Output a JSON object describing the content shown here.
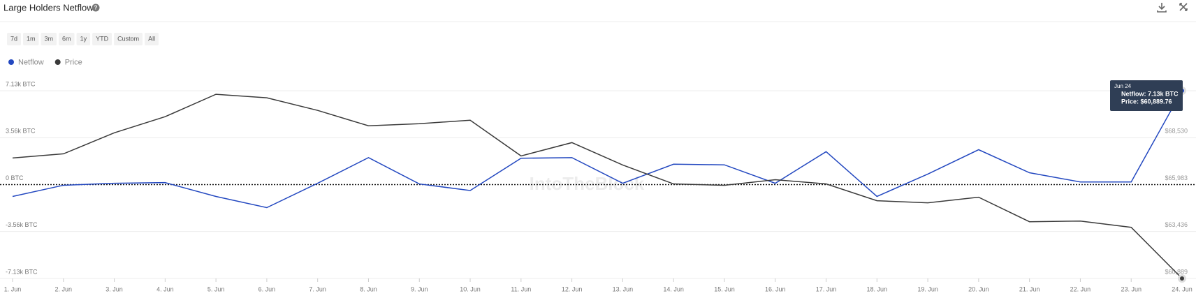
{
  "title": "Large Holders Netflow",
  "ranges": [
    "7d",
    "1m",
    "3m",
    "6m",
    "1y",
    "YTD",
    "Custom",
    "All"
  ],
  "watermark": "IntoTheBlock",
  "tooltip": {
    "title": "Jun 24",
    "lines": [
      "Netflow: 7.13k BTC",
      "Price: $60,889.76"
    ]
  },
  "chart_data": {
    "type": "line",
    "categories": [
      "1. Jun",
      "2. Jun",
      "3. Jun",
      "4. Jun",
      "5. Jun",
      "6. Jun",
      "7. Jun",
      "8. Jun",
      "9. Jun",
      "10. Jun",
      "11. Jun",
      "12. Jun",
      "13. Jun",
      "14. Jun",
      "15. Jun",
      "16. Jun",
      "17. Jun",
      "18. Jun",
      "19. Jun",
      "20. Jun",
      "21. Jun",
      "22. Jun",
      "23. Jun",
      "24. Jun"
    ],
    "series": [
      {
        "name": "Netflow",
        "color": "#2348c0",
        "values": [
          -900,
          -50,
          100,
          150,
          -900,
          -1750,
          100,
          2050,
          50,
          -450,
          2000,
          2050,
          100,
          1550,
          1500,
          100,
          2500,
          -900,
          800,
          2650,
          900,
          200,
          200,
          7130
        ]
      },
      {
        "name": "Price",
        "color": "#3a3a3a",
        "axis": "y2",
        "values": [
          67425,
          67653,
          68793,
          69667,
          70883,
          70693,
          70009,
          69173,
          69287,
          69477,
          67539,
          68261,
          67045,
          66019,
          65943,
          66247,
          66019,
          65107,
          64993,
          65297,
          63967,
          64005,
          63663,
          60889.76
        ]
      }
    ],
    "ylim": [
      -7130,
      7130
    ],
    "yticks": [
      {
        "value": 7130,
        "label": "7.13k BTC"
      },
      {
        "value": 3560,
        "label": "3.56k BTC"
      },
      {
        "value": 0,
        "label": "0 BTC"
      },
      {
        "value": -3560,
        "label": "-3.56k BTC"
      },
      {
        "value": -7130,
        "label": "-7.13k BTC"
      }
    ],
    "y2lim": [
      60889,
      71077
    ],
    "y2ticks": [
      {
        "value": 68530,
        "label": "$68,530"
      },
      {
        "value": 65983,
        "label": "$65,983"
      },
      {
        "value": 63436,
        "label": "$63,436"
      },
      {
        "value": 60889,
        "label": "$60,889"
      }
    ],
    "grid": true
  }
}
